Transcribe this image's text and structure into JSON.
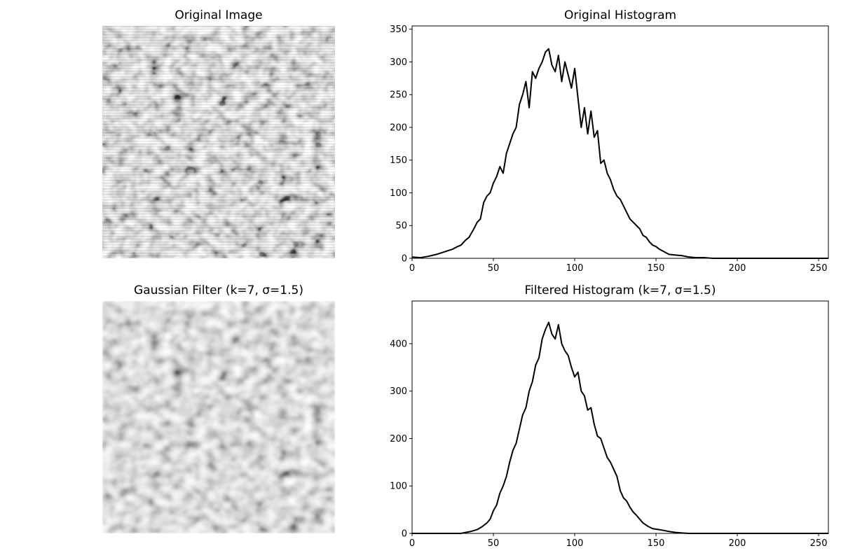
{
  "figure": {
    "original_image_title": "Original Image",
    "filtered_image_title": "Gaussian Filter (k=7, σ=1.5)"
  },
  "chart_data": [
    {
      "type": "line",
      "title": "Original Histogram",
      "xlabel": "",
      "ylabel": "",
      "xlim": [
        0,
        256
      ],
      "ylim": [
        0,
        355
      ],
      "xticks": [
        0,
        50,
        100,
        150,
        200,
        250
      ],
      "yticks": [
        0,
        50,
        100,
        150,
        200,
        250,
        300,
        350
      ],
      "grid": false,
      "line_color": "#000000",
      "series": [
        {
          "x": [
            0,
            5,
            10,
            15,
            20,
            25,
            28,
            30,
            33,
            35,
            38,
            40,
            42,
            44,
            46,
            48,
            50,
            52,
            54,
            56,
            58,
            60,
            62,
            64,
            66,
            68,
            70,
            72,
            74,
            76,
            78,
            80,
            82,
            84,
            86,
            88,
            90,
            92,
            94,
            96,
            98,
            100,
            102,
            104,
            106,
            108,
            110,
            112,
            114,
            116,
            118,
            120,
            122,
            124,
            126,
            128,
            130,
            132,
            134,
            136,
            138,
            140,
            142,
            144,
            146,
            148,
            150,
            152,
            155,
            158,
            162,
            166,
            170,
            175,
            180,
            185,
            190,
            195,
            200,
            205,
            210,
            220,
            230,
            240,
            250,
            256
          ],
          "y": [
            2,
            1,
            3,
            6,
            10,
            14,
            18,
            20,
            28,
            32,
            45,
            55,
            60,
            85,
            95,
            100,
            115,
            125,
            140,
            130,
            160,
            175,
            190,
            200,
            235,
            250,
            270,
            230,
            285,
            275,
            290,
            300,
            315,
            320,
            295,
            285,
            310,
            270,
            300,
            280,
            260,
            290,
            245,
            200,
            230,
            190,
            225,
            185,
            195,
            145,
            150,
            130,
            120,
            105,
            95,
            90,
            80,
            70,
            60,
            55,
            50,
            45,
            35,
            32,
            25,
            20,
            18,
            14,
            10,
            6,
            5,
            4,
            2,
            1,
            1,
            0,
            0,
            0,
            0,
            0,
            0,
            0,
            0,
            0,
            0,
            0
          ]
        }
      ]
    },
    {
      "type": "line",
      "title": "Filtered Histogram (k=7, σ=1.5)",
      "xlabel": "",
      "ylabel": "",
      "xlim": [
        0,
        256
      ],
      "ylim": [
        0,
        490
      ],
      "xticks": [
        0,
        50,
        100,
        150,
        200,
        250
      ],
      "yticks": [
        0,
        100,
        200,
        300,
        400
      ],
      "grid": false,
      "line_color": "#000000",
      "series": [
        {
          "x": [
            0,
            10,
            20,
            30,
            33,
            36,
            40,
            43,
            46,
            48,
            50,
            52,
            54,
            56,
            58,
            60,
            62,
            64,
            66,
            68,
            70,
            72,
            74,
            76,
            78,
            80,
            82,
            84,
            86,
            88,
            90,
            92,
            94,
            96,
            98,
            100,
            102,
            104,
            106,
            108,
            110,
            112,
            114,
            116,
            118,
            120,
            122,
            124,
            126,
            128,
            130,
            132,
            134,
            136,
            138,
            140,
            142,
            145,
            148,
            152,
            155,
            158,
            162,
            166,
            170,
            175,
            180,
            200,
            220,
            240,
            256
          ],
          "y": [
            0,
            0,
            0,
            0,
            2,
            4,
            8,
            14,
            22,
            30,
            48,
            60,
            85,
            100,
            120,
            150,
            175,
            190,
            220,
            250,
            265,
            300,
            320,
            355,
            370,
            410,
            430,
            445,
            420,
            410,
            440,
            400,
            385,
            375,
            350,
            330,
            340,
            300,
            290,
            260,
            265,
            230,
            205,
            200,
            180,
            160,
            150,
            135,
            120,
            90,
            75,
            68,
            55,
            45,
            38,
            30,
            22,
            15,
            10,
            8,
            6,
            4,
            2,
            1,
            0,
            0,
            0,
            0,
            0,
            0,
            0
          ]
        }
      ]
    }
  ]
}
